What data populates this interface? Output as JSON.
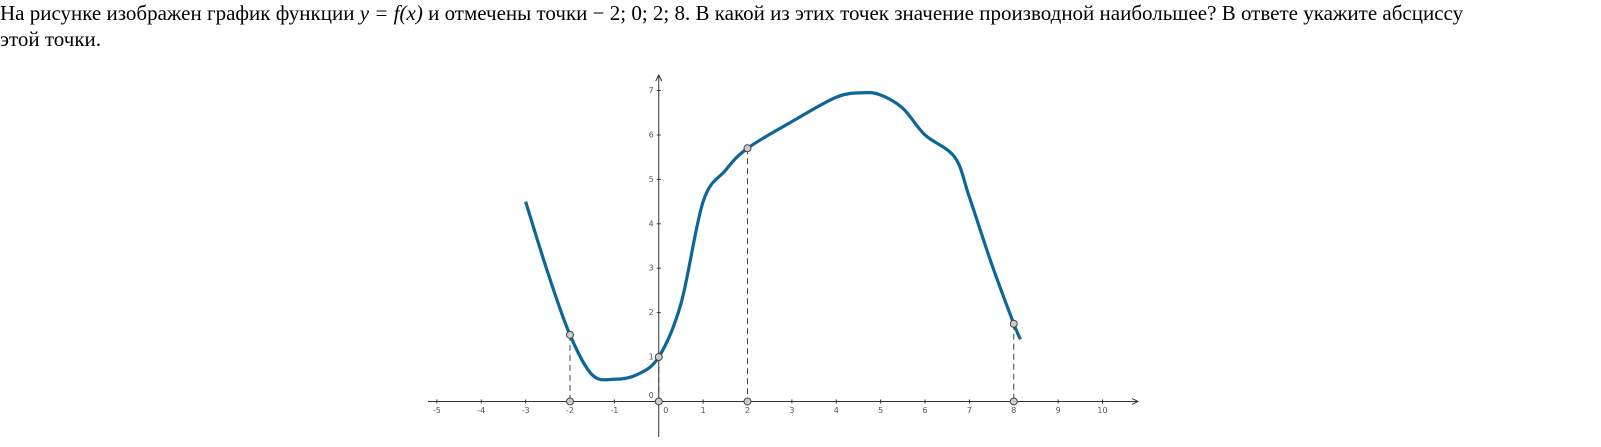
{
  "question": {
    "text_before": "На рисунке изображен график функции",
    "formula": "y = f(x)",
    "text_middle": "и отмечены точки",
    "points_text": "− 2;  0;  2;  8.",
    "text_after": "В какой из этих точек значение производной наибольшее? В ответе укажите абсциссу этой точки."
  },
  "chart_data": {
    "type": "line",
    "color": "#0e6698",
    "x": [
      -3,
      -2.5,
      -2,
      -1.5,
      -1,
      -0.5,
      0,
      0.5,
      1,
      1.5,
      2,
      3,
      4,
      4.6,
      5,
      5.5,
      6,
      6.67,
      7,
      7.5,
      8,
      8.15
    ],
    "values": [
      4.5,
      2.9,
      1.5,
      0.6,
      0.5,
      0.6,
      1,
      2.2,
      4.5,
      5.2,
      5.7,
      6.3,
      6.85,
      6.95,
      6.9,
      6.6,
      6.0,
      5.5,
      4.6,
      3.1,
      1.75,
      1.4
    ],
    "points": {
      "x": [
        -2,
        0,
        2,
        8
      ],
      "values": [
        1.5,
        1,
        5.7,
        1.75
      ]
    },
    "xlim": [
      -5.2,
      10.8
    ],
    "ylim": [
      -0.8,
      7.35
    ],
    "xticks": [
      -5,
      -4,
      -3,
      -2,
      -1,
      0,
      1,
      2,
      3,
      4,
      5,
      6,
      7,
      8,
      9,
      10
    ],
    "yticks": [
      0,
      1,
      2,
      3,
      4,
      5,
      6,
      7
    ]
  }
}
